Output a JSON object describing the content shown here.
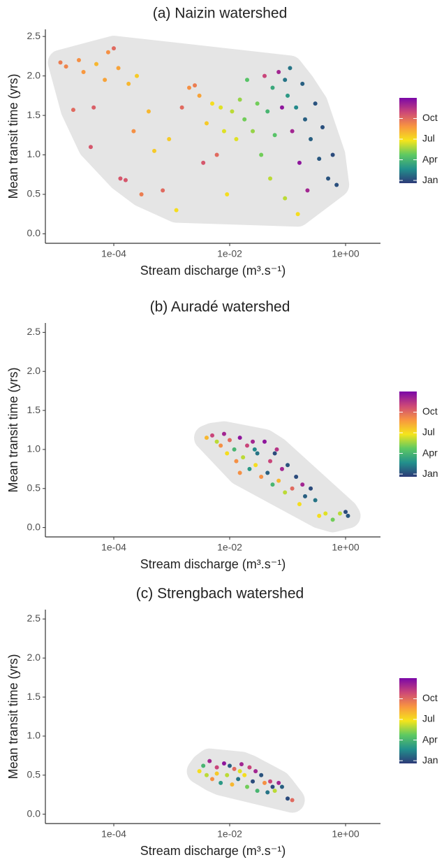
{
  "chart_data": [
    {
      "type": "scatter",
      "title": "(a) Naizin watershed",
      "xlabel": "Stream discharge (m³.s⁻¹)",
      "ylabel": "Mean transit time (yrs)",
      "xscale": "log",
      "xlim": [
        6.6e-06,
        4
      ],
      "ylim": [
        -0.12,
        2.59
      ],
      "xticks": [
        {
          "value": 0.0001,
          "label": "1e-04"
        },
        {
          "value": 0.01,
          "label": "1e-02"
        },
        {
          "value": 1,
          "label": "1e+00"
        }
      ],
      "yticks": [
        {
          "value": 0,
          "label": "0.0"
        },
        0.5,
        {
          "value": 1,
          "label": "1.0"
        },
        1.5,
        {
          "value": 2,
          "label": "2.0"
        },
        2.5
      ],
      "x": [
        1.2e-05,
        1.5e-05,
        2e-05,
        2.5e-05,
        3e-05,
        4e-05,
        4.5e-05,
        5e-05,
        7e-05,
        8e-05,
        0.0001,
        0.00012,
        0.00013,
        0.00016,
        0.00018,
        0.00022,
        0.00025,
        0.0003,
        0.0004,
        0.0005,
        0.0007,
        0.0009,
        0.0012,
        0.0015,
        0.002,
        0.0025,
        0.003,
        0.0035,
        0.004,
        0.005,
        0.006,
        0.007,
        0.008,
        0.009,
        0.011,
        0.013,
        0.015,
        0.018,
        0.02,
        0.025,
        0.03,
        0.035,
        0.04,
        0.045,
        0.05,
        0.055,
        0.06,
        0.07,
        0.08,
        0.09,
        0.1,
        0.11,
        0.12,
        0.14,
        0.16,
        0.18,
        0.2,
        0.22,
        0.25,
        0.3,
        0.35,
        0.4,
        0.5,
        0.6,
        0.7,
        0.15,
        0.09
      ],
      "y": [
        2.17,
        2.12,
        1.57,
        2.2,
        2.05,
        1.1,
        1.6,
        2.15,
        1.95,
        2.3,
        2.35,
        2.1,
        0.7,
        0.68,
        1.9,
        1.3,
        2.0,
        0.5,
        1.55,
        1.05,
        0.55,
        1.2,
        0.3,
        1.6,
        1.85,
        1.88,
        1.75,
        0.9,
        1.4,
        1.65,
        1.0,
        1.6,
        1.3,
        0.5,
        1.55,
        1.2,
        1.7,
        1.45,
        1.95,
        1.3,
        1.65,
        1.0,
        2.0,
        1.55,
        0.7,
        1.85,
        1.25,
        2.05,
        1.6,
        0.45,
        1.75,
        2.1,
        1.3,
        1.6,
        0.9,
        1.9,
        1.45,
        0.55,
        1.2,
        1.65,
        0.95,
        1.35,
        0.7,
        1.0,
        0.62,
        0.25,
        1.95
      ],
      "color_values": [
        9.5,
        9.3,
        10,
        9,
        8.8,
        10.5,
        10.3,
        8,
        8.5,
        9,
        10,
        8.5,
        10.5,
        10.5,
        8,
        9,
        7.5,
        9.5,
        8,
        7.5,
        10,
        7.5,
        7,
        10,
        9,
        9.5,
        8.5,
        10.5,
        7.5,
        7,
        10,
        6.5,
        6.5,
        7,
        6,
        6.5,
        5.5,
        5,
        4.5,
        5.5,
        5,
        5,
        11,
        4,
        6,
        3.5,
        4.5,
        12,
        12.5,
        6,
        3,
        2,
        12,
        2.5,
        12.5,
        1.5,
        1.5,
        12,
        1.5,
        1.2,
        1.3,
        1.1,
        1.2,
        1.0,
        1.1,
        7,
        2
      ],
      "colormap": [
        "#2d3a78",
        "#22908c",
        "#5ec962",
        "#f5e51b",
        "#f89540",
        "#cc4778",
        "#7a07a8"
      ],
      "clim": [
        0.6,
        13
      ],
      "colorticks": [
        {
          "value": 1,
          "label": "Jan"
        },
        {
          "value": 4,
          "label": "Apr"
        },
        {
          "value": 7,
          "label": "Jul"
        },
        {
          "value": 10,
          "label": "Oct"
        }
      ]
    },
    {
      "type": "scatter",
      "title": "(b) Auradé watershed",
      "xlabel": "Stream discharge (m³.s⁻¹)",
      "ylabel": "Mean transit time (yrs)",
      "xscale": "log",
      "xlim": [
        6.6e-06,
        4
      ],
      "ylim": [
        -0.12,
        2.62
      ],
      "xticks": [
        {
          "value": 0.0001,
          "label": "1e-04"
        },
        {
          "value": 0.01,
          "label": "1e-02"
        },
        {
          "value": 1,
          "label": "1e+00"
        }
      ],
      "yticks": [
        {
          "value": 0,
          "label": "0.0"
        },
        0.5,
        {
          "value": 1,
          "label": "1.0"
        },
        1.5,
        {
          "value": 2,
          "label": "2.0"
        },
        2.5
      ],
      "x": [
        0.004,
        0.005,
        0.006,
        0.007,
        0.008,
        0.009,
        0.01,
        0.012,
        0.013,
        0.015,
        0.017,
        0.02,
        0.022,
        0.025,
        0.028,
        0.03,
        0.035,
        0.04,
        0.045,
        0.05,
        0.055,
        0.06,
        0.07,
        0.08,
        0.09,
        0.1,
        0.12,
        0.14,
        0.16,
        0.18,
        0.2,
        0.25,
        0.3,
        0.35,
        0.45,
        0.6,
        0.8,
        1.0,
        1.1,
        0.027,
        0.065,
        0.015
      ],
      "y": [
        1.15,
        1.18,
        1.1,
        1.05,
        1.2,
        0.95,
        1.12,
        1.0,
        0.85,
        1.15,
        0.9,
        1.05,
        0.75,
        1.1,
        0.8,
        0.95,
        0.65,
        1.1,
        0.7,
        0.85,
        0.55,
        0.95,
        0.6,
        0.75,
        0.45,
        0.8,
        0.5,
        0.65,
        0.3,
        0.55,
        0.4,
        0.5,
        0.35,
        0.15,
        0.18,
        0.1,
        0.18,
        0.2,
        0.15,
        1.0,
        1.0,
        0.7
      ],
      "color_values": [
        8,
        11,
        6,
        9,
        12,
        7,
        10,
        4,
        9,
        12.5,
        6,
        11,
        3,
        12,
        7,
        2,
        9,
        12.5,
        1.5,
        11,
        4,
        1,
        8,
        12,
        6,
        1.2,
        10,
        1,
        7,
        12,
        1.5,
        1,
        2,
        7,
        6.5,
        5,
        6,
        1,
        1.3,
        2.5,
        11.5,
        9
      ],
      "colormap": [
        "#2d3a78",
        "#22908c",
        "#5ec962",
        "#f5e51b",
        "#f89540",
        "#cc4778",
        "#7a07a8"
      ],
      "clim": [
        0.6,
        13
      ],
      "colorticks": [
        {
          "value": 1,
          "label": "Jan"
        },
        {
          "value": 4,
          "label": "Apr"
        },
        {
          "value": 7,
          "label": "Jul"
        },
        {
          "value": 10,
          "label": "Oct"
        }
      ]
    },
    {
      "type": "scatter",
      "title": "(c) Strengbach watershed",
      "xlabel": "Stream discharge (m³.s⁻¹)",
      "ylabel": "Mean transit time (yrs)",
      "xscale": "log",
      "xlim": [
        6.6e-06,
        4
      ],
      "ylim": [
        -0.12,
        2.62
      ],
      "xticks": [
        {
          "value": 0.0001,
          "label": "1e-04"
        },
        {
          "value": 0.01,
          "label": "1e-02"
        },
        {
          "value": 1,
          "label": "1e+00"
        }
      ],
      "yticks": [
        {
          "value": 0,
          "label": "0.0"
        },
        0.5,
        {
          "value": 1,
          "label": "1.0"
        },
        1.5,
        {
          "value": 2,
          "label": "2.0"
        },
        2.5
      ],
      "x": [
        0.003,
        0.0035,
        0.004,
        0.0045,
        0.005,
        0.006,
        0.007,
        0.008,
        0.009,
        0.01,
        0.011,
        0.012,
        0.014,
        0.016,
        0.018,
        0.02,
        0.022,
        0.025,
        0.028,
        0.03,
        0.035,
        0.04,
        0.045,
        0.05,
        0.055,
        0.06,
        0.07,
        0.08,
        0.1,
        0.12,
        0.006,
        0.015
      ],
      "y": [
        0.55,
        0.62,
        0.5,
        0.68,
        0.45,
        0.6,
        0.4,
        0.65,
        0.5,
        0.62,
        0.38,
        0.58,
        0.45,
        0.64,
        0.5,
        0.35,
        0.6,
        0.42,
        0.55,
        0.3,
        0.5,
        0.4,
        0.28,
        0.42,
        0.35,
        0.3,
        0.4,
        0.35,
        0.2,
        0.18,
        0.52,
        0.55
      ],
      "color_values": [
        7,
        4,
        6,
        12,
        9,
        11,
        3,
        12.5,
        6,
        1.5,
        8,
        10,
        2,
        12,
        7,
        5,
        11,
        1,
        12,
        4,
        1.2,
        9,
        2,
        11,
        1,
        6,
        12,
        1.5,
        1,
        10,
        7.5,
        6.5
      ],
      "colormap": [
        "#2d3a78",
        "#22908c",
        "#5ec962",
        "#f5e51b",
        "#f89540",
        "#cc4778",
        "#7a07a8"
      ],
      "clim": [
        0.6,
        13
      ],
      "colorticks": [
        {
          "value": 1,
          "label": "Jan"
        },
        {
          "value": 4,
          "label": "Apr"
        },
        {
          "value": 7,
          "label": "Jul"
        },
        {
          "value": 10,
          "label": "Oct"
        }
      ]
    }
  ]
}
